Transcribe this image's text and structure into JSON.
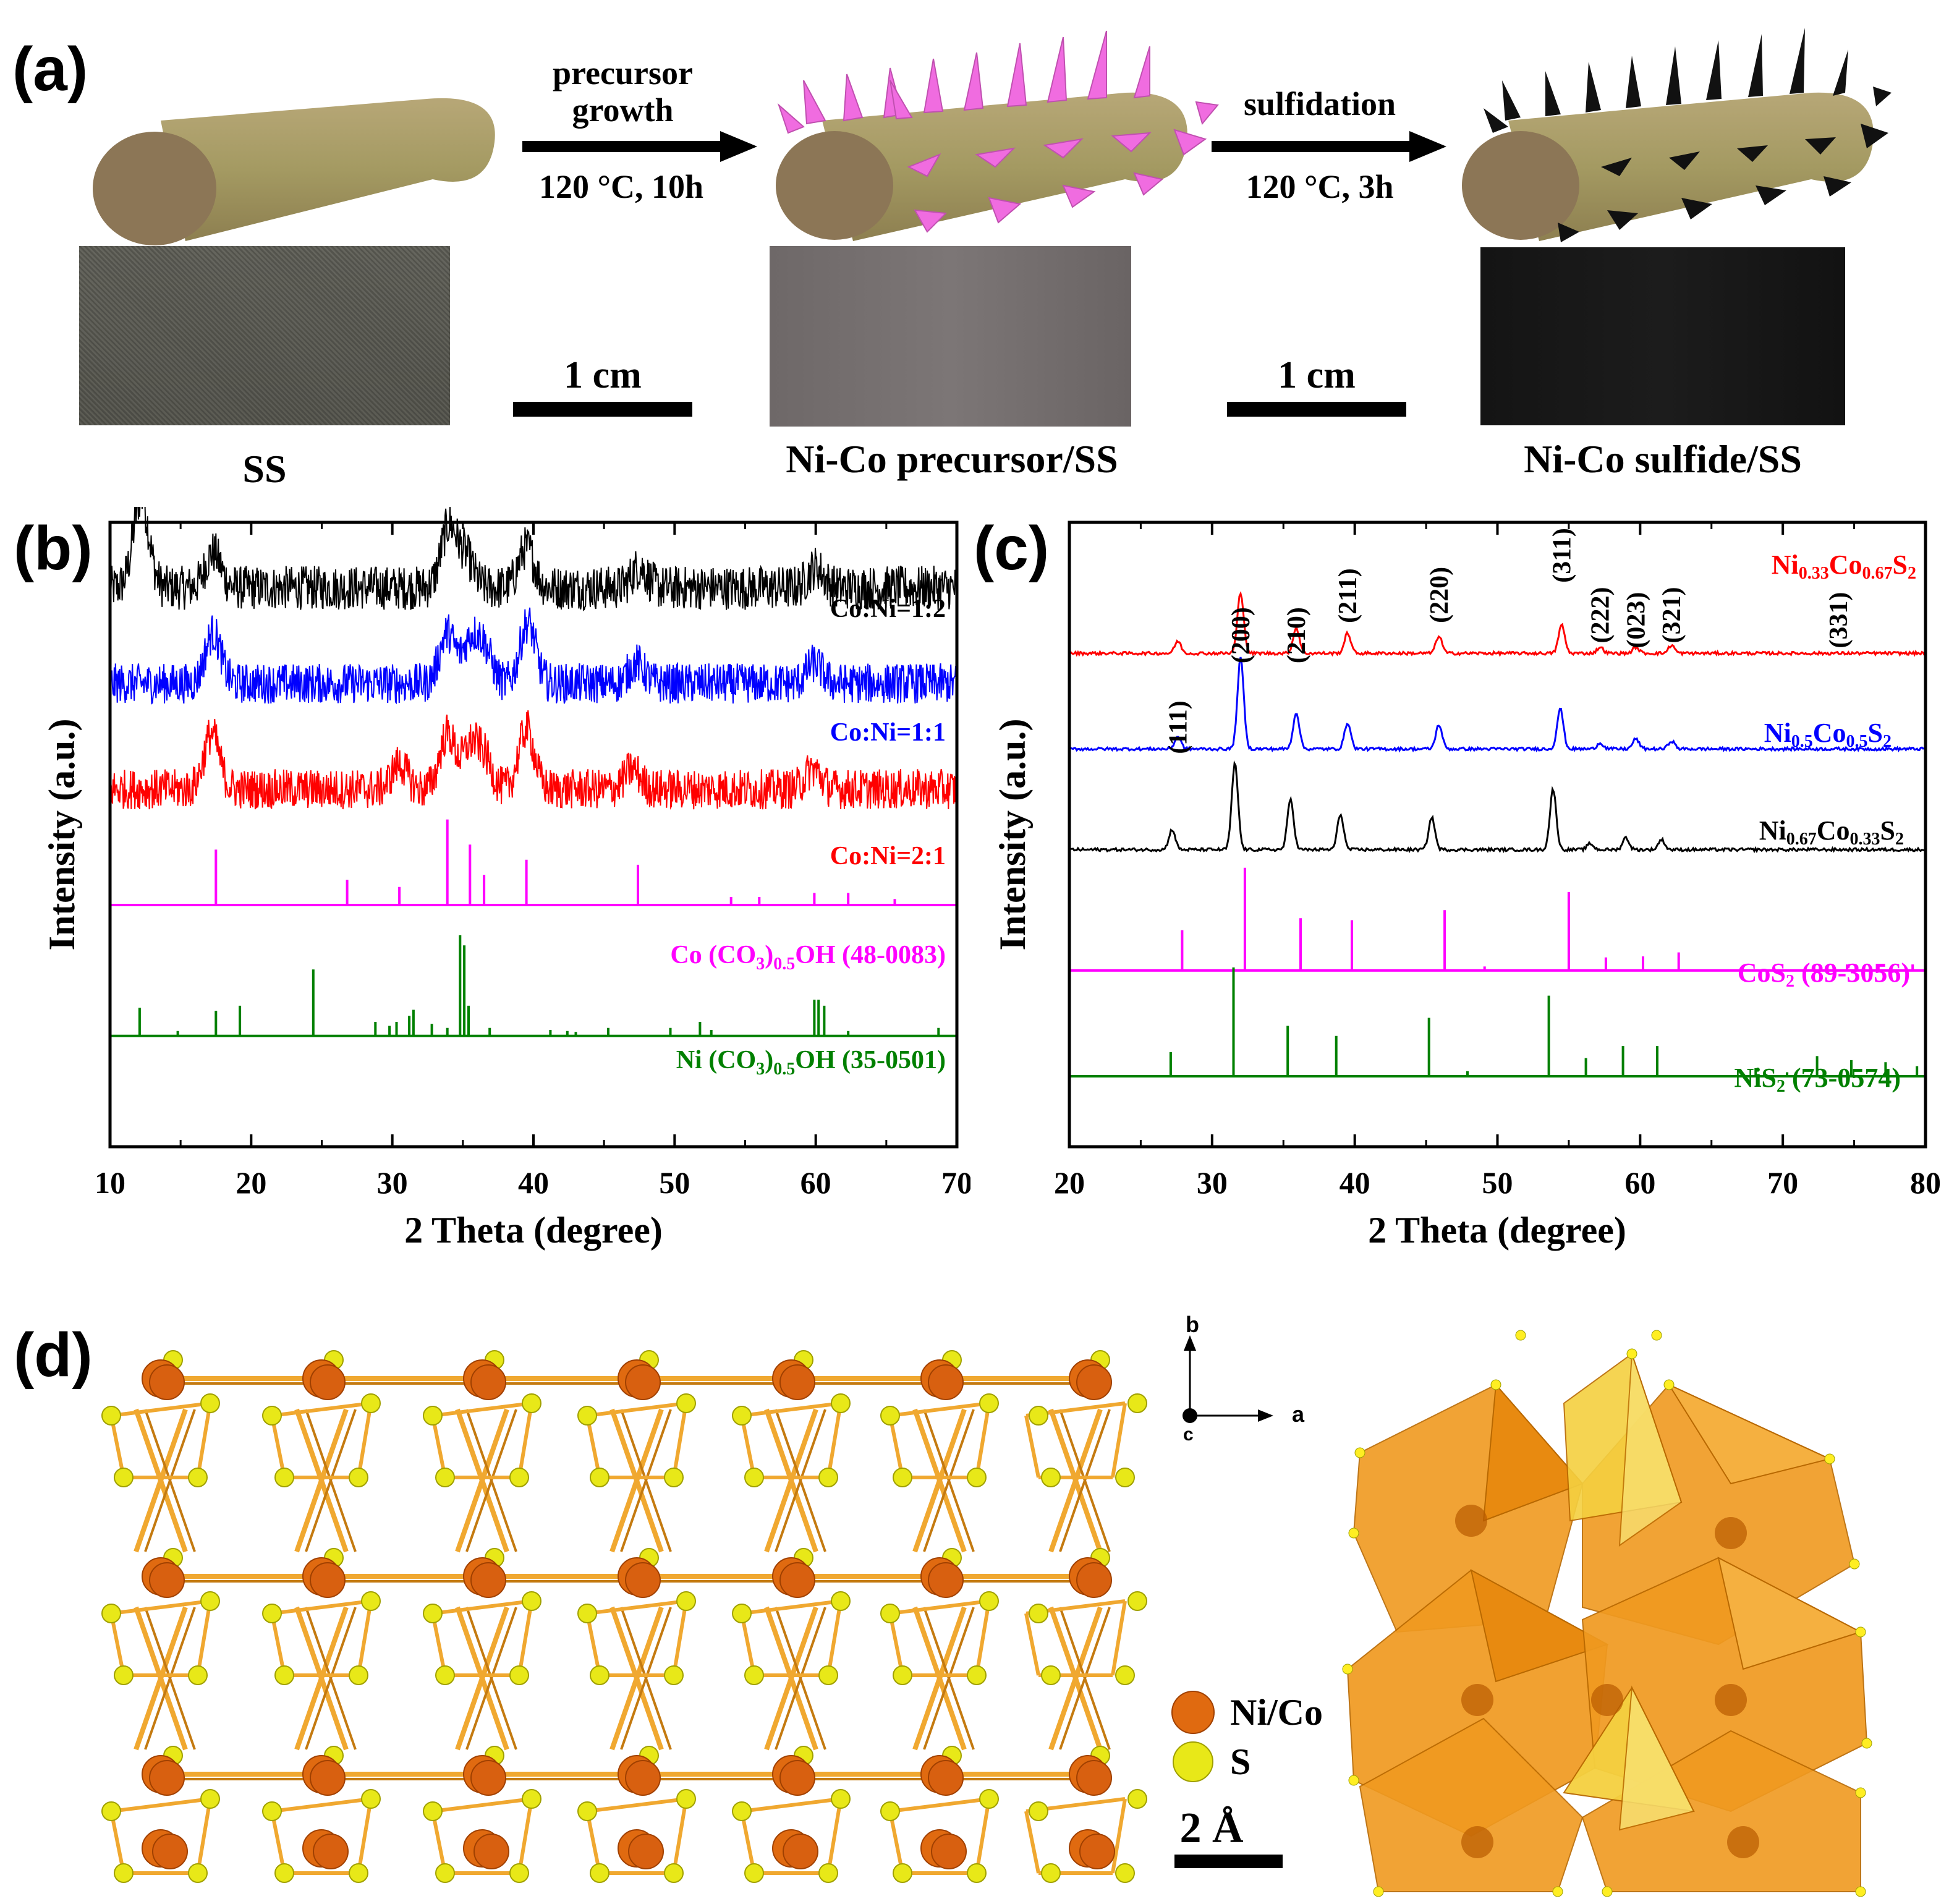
{
  "panel_a": {
    "label": "(a)",
    "step1_top": "precursor",
    "step1_mid": "growth",
    "step1_cond": "120 °C, 10h",
    "step2_top": "sulfidation",
    "step2_cond": "120 °C, 3h",
    "scalebar1": "1 cm",
    "scalebar2": "1 cm",
    "caption_ss": "SS",
    "caption_precursor": "Ni-Co precursor/SS",
    "caption_sulfide": "Ni-Co sulfide/SS",
    "colors": {
      "rod": "#a89a6a",
      "rod_end": "#8c7656",
      "precursor_spikes": "#f06ce0",
      "sulfide_spikes": "#111111"
    }
  },
  "panel_b": {
    "label": "(b)"
  },
  "panel_c": {
    "label": "(c)"
  },
  "panel_d": {
    "label": "(d)",
    "axis_b": "b",
    "axis_a": "a",
    "axis_c": "c",
    "legend_nico": "Ni/Co",
    "legend_s": "S",
    "scalebar": "2 Å",
    "colors": {
      "nico": "#e06a10",
      "s": "#e8e818",
      "bond": "#f0a830",
      "poly": "#f09a20",
      "tetra": "#f5d040"
    }
  },
  "chart_data": [
    {
      "id": "b",
      "type": "line",
      "xlabel": "2 Theta (degree)",
      "ylabel": "Intensity (a.u.)",
      "xlim": [
        10,
        70
      ],
      "xticks": [
        10,
        20,
        30,
        40,
        50,
        60,
        70
      ],
      "series": [
        {
          "name": "Co:Ni=1:2",
          "color": "#000000",
          "kind": "noisy",
          "base": 5.55,
          "noise": 0.22,
          "peaks": [
            [
              12.2,
              0.9
            ],
            [
              17.3,
              0.35
            ],
            [
              34.0,
              0.6
            ],
            [
              35.2,
              0.3
            ],
            [
              39.5,
              0.4
            ],
            [
              47.5,
              0.2
            ],
            [
              60.0,
              0.2
            ]
          ]
        },
        {
          "name": "Co:Ni=1:1",
          "color": "#0000ff",
          "kind": "noisy",
          "base": 4.6,
          "noise": 0.2,
          "peaks": [
            [
              17.3,
              0.5
            ],
            [
              33.9,
              0.5
            ],
            [
              35.5,
              0.4
            ],
            [
              36.5,
              0.35
            ],
            [
              39.6,
              0.6
            ],
            [
              47.3,
              0.2
            ],
            [
              59.9,
              0.2
            ]
          ]
        },
        {
          "name": "Co:Ni=2:1",
          "color": "#ff0000",
          "kind": "noisy",
          "base": 3.55,
          "noise": 0.2,
          "peaks": [
            [
              17.2,
              0.55
            ],
            [
              30.5,
              0.25
            ],
            [
              33.9,
              0.55
            ],
            [
              35.5,
              0.4
            ],
            [
              36.5,
              0.3
            ],
            [
              39.5,
              0.6
            ],
            [
              47.0,
              0.2
            ],
            [
              59.8,
              0.2
            ]
          ]
        },
        {
          "name": "Co (CO3)0.5OH (48-0083)",
          "color": "#ff00ff",
          "kind": "sticks",
          "base": 2.4,
          "peaks": [
            [
              17.5,
              0.55
            ],
            [
              26.8,
              0.25
            ],
            [
              30.5,
              0.18
            ],
            [
              33.9,
              0.85
            ],
            [
              35.5,
              0.6
            ],
            [
              36.5,
              0.3
            ],
            [
              39.5,
              0.45
            ],
            [
              47.4,
              0.4
            ],
            [
              54.0,
              0.08
            ],
            [
              56.0,
              0.08
            ],
            [
              59.9,
              0.12
            ],
            [
              62.3,
              0.12
            ],
            [
              65.6,
              0.06
            ]
          ]
        },
        {
          "name": "Ni (CO3)0.5OH (35-0501)",
          "color": "#008000",
          "kind": "sticks",
          "base": 1.1,
          "peaks": [
            [
              12.1,
              0.28
            ],
            [
              14.8,
              0.05
            ],
            [
              17.5,
              0.25
            ],
            [
              19.2,
              0.3
            ],
            [
              24.4,
              0.66
            ],
            [
              28.8,
              0.14
            ],
            [
              29.8,
              0.1
            ],
            [
              30.3,
              0.14
            ],
            [
              31.2,
              0.2
            ],
            [
              31.5,
              0.26
            ],
            [
              32.8,
              0.12
            ],
            [
              33.9,
              0.08
            ],
            [
              34.8,
              1.0
            ],
            [
              35.1,
              0.9
            ],
            [
              35.4,
              0.3
            ],
            [
              36.9,
              0.08
            ],
            [
              41.2,
              0.06
            ],
            [
              42.4,
              0.05
            ],
            [
              43.0,
              0.04
            ],
            [
              45.3,
              0.08
            ],
            [
              49.7,
              0.08
            ],
            [
              51.8,
              0.14
            ],
            [
              52.6,
              0.06
            ],
            [
              59.9,
              0.36
            ],
            [
              60.2,
              0.36
            ],
            [
              60.6,
              0.3
            ],
            [
              62.3,
              0.05
            ],
            [
              68.7,
              0.08
            ]
          ]
        }
      ],
      "labels": [
        "Co:Ni=1:2",
        "Co:Ni=1:1",
        "Co:Ni=2:1",
        "Co (CO",
        "3",
        ")",
        "0.5",
        "OH (48-0083)",
        "Ni (CO",
        "3",
        ")",
        "0.5",
        "OH (35-0501)"
      ]
    },
    {
      "id": "c",
      "type": "line",
      "xlabel": "2 Theta (degree)",
      "ylabel": "Intensity (a.u.)",
      "xlim": [
        20,
        80
      ],
      "xticks": [
        20,
        30,
        40,
        50,
        60,
        70,
        80
      ],
      "series": [
        {
          "name": "Ni0.33Co0.67S2",
          "color": "#ff0000",
          "kind": "smooth",
          "base": 4.9,
          "noise": 0.03,
          "peaks": [
            [
              27.6,
              0.12
            ],
            [
              32.0,
              0.6
            ],
            [
              35.9,
              0.25
            ],
            [
              39.5,
              0.2
            ],
            [
              45.9,
              0.17
            ],
            [
              54.5,
              0.28
            ],
            [
              57.2,
              0.06
            ],
            [
              59.7,
              0.06
            ],
            [
              62.2,
              0.08
            ]
          ]
        },
        {
          "name": "Ni0.5Co0.5S2",
          "color": "#0000ff",
          "kind": "smooth",
          "base": 3.95,
          "noise": 0.03,
          "peaks": [
            [
              27.6,
              0.12
            ],
            [
              32.0,
              0.9
            ],
            [
              35.9,
              0.36
            ],
            [
              39.5,
              0.26
            ],
            [
              45.9,
              0.24
            ],
            [
              54.4,
              0.4
            ],
            [
              57.2,
              0.06
            ],
            [
              59.7,
              0.1
            ],
            [
              62.2,
              0.08
            ]
          ]
        },
        {
          "name": "Ni0.67Co0.33S2",
          "color": "#000000",
          "kind": "smooth",
          "base": 2.95,
          "noise": 0.03,
          "peaks": [
            [
              27.2,
              0.2
            ],
            [
              31.6,
              0.85
            ],
            [
              35.5,
              0.5
            ],
            [
              39.0,
              0.35
            ],
            [
              45.4,
              0.32
            ],
            [
              53.9,
              0.6
            ],
            [
              56.5,
              0.06
            ],
            [
              59.0,
              0.12
            ],
            [
              61.5,
              0.1
            ]
          ]
        },
        {
          "name": "CoS2 (89-3056)",
          "color": "#ff00ff",
          "kind": "sticks",
          "base": 1.75,
          "peaks": [
            [
              27.9,
              0.4
            ],
            [
              32.3,
              1.02
            ],
            [
              36.2,
              0.52
            ],
            [
              39.8,
              0.5
            ],
            [
              46.3,
              0.6
            ],
            [
              49.1,
              0.04
            ],
            [
              55.0,
              0.78
            ],
            [
              57.6,
              0.13
            ],
            [
              60.2,
              0.14
            ],
            [
              62.7,
              0.18
            ],
            [
              74.5,
              0.06
            ],
            [
              76.7,
              0.06
            ],
            [
              79.1,
              0.06
            ]
          ]
        },
        {
          "name": "NiS2 (73-0574)",
          "color": "#008000",
          "kind": "sticks",
          "base": 0.7,
          "peaks": [
            [
              27.1,
              0.24
            ],
            [
              31.5,
              1.08
            ],
            [
              35.3,
              0.5
            ],
            [
              38.7,
              0.4
            ],
            [
              45.2,
              0.58
            ],
            [
              47.9,
              0.05
            ],
            [
              53.6,
              0.8
            ],
            [
              56.2,
              0.18
            ],
            [
              58.8,
              0.3
            ],
            [
              61.2,
              0.3
            ],
            [
              68.1,
              0.08
            ],
            [
              70.3,
              0.04
            ],
            [
              72.4,
              0.2
            ],
            [
              74.8,
              0.16
            ],
            [
              77.2,
              0.14
            ],
            [
              79.4,
              0.1
            ]
          ]
        }
      ],
      "labels": [
        "Ni",
        "0.33",
        "Co",
        "0.67",
        "S",
        "2",
        "Ni",
        "0.5",
        "Co",
        "0.5",
        "S",
        "2",
        "Ni",
        "0.67",
        "Co",
        "0.33",
        "S",
        "2",
        "CoS",
        "2",
        " (89-3056)",
        "NiS",
        "2",
        " (73-0574)"
      ],
      "hkl": [
        "(111)",
        "(200)",
        "(210)",
        "(211)",
        "(220)",
        "(311)",
        "(222)",
        "(023)",
        "(321)",
        "(331)"
      ]
    }
  ]
}
